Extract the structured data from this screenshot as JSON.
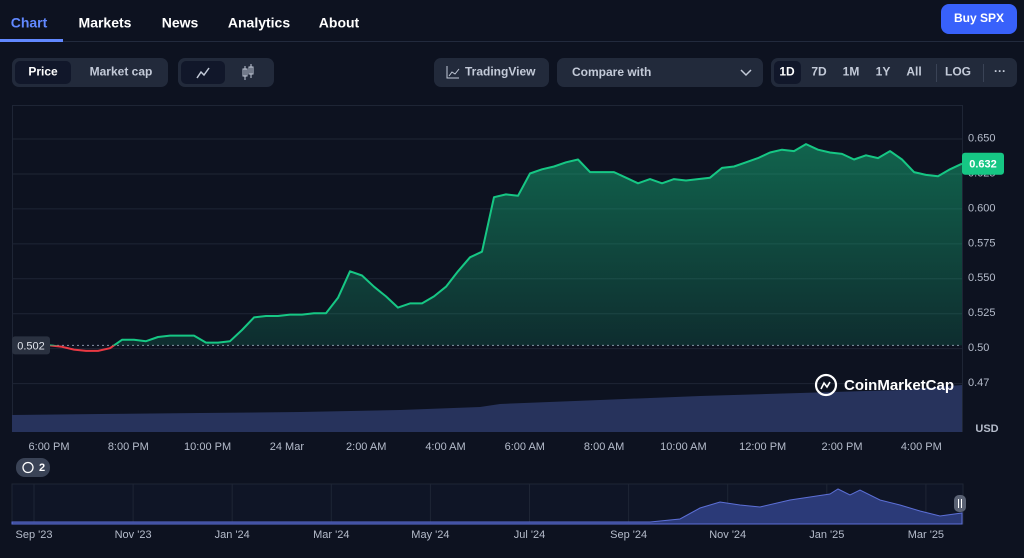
{
  "nav": {
    "tabs": [
      "Chart",
      "Markets",
      "News",
      "Analytics",
      "About"
    ]
  },
  "buy_button": "Buy SPX",
  "toolbar": {
    "toggle": [
      "Price",
      "Market cap"
    ],
    "tradingview": "TradingView",
    "compare": "Compare with",
    "ranges": [
      "1D",
      "7D",
      "1M",
      "1Y",
      "All",
      "LOG"
    ],
    "more": "···"
  },
  "indicator_count": 2,
  "watermark": "CoinMarketCap",
  "chart_data": {
    "type": "line",
    "y_unit": "USD",
    "colors": {
      "up": "#16c784",
      "down": "#ea3943"
    },
    "ylim": [
      0.44,
      0.674
    ],
    "yticks": [
      {
        "value": 0.475,
        "label": "0.47"
      },
      {
        "value": 0.5,
        "label": "0.50"
      },
      0.525,
      {
        "value": 0.55,
        "label": "0.550"
      },
      0.575,
      {
        "value": 0.6,
        "label": "0.600"
      },
      0.625,
      {
        "value": 0.65,
        "label": "0.650"
      }
    ],
    "grid": true,
    "xticks": [
      "6:00 PM",
      "8:00 PM",
      "10:00 PM",
      "24 Mar",
      "2:00 AM",
      "4:00 AM",
      "6:00 AM",
      "8:00 AM",
      "10:00 AM",
      "12:00 PM",
      "2:00 PM",
      "4:00 PM"
    ],
    "values": [
      0.502,
      0.501,
      0.499,
      0.498,
      0.498,
      0.5,
      0.506,
      0.506,
      0.505,
      0.508,
      0.509,
      0.509,
      0.509,
      0.504,
      0.504,
      0.505,
      0.513,
      0.522,
      0.523,
      0.523,
      0.524,
      0.524,
      0.525,
      0.525,
      0.536,
      0.555,
      0.552,
      0.544,
      0.537,
      0.529,
      0.532,
      0.532,
      0.537,
      0.544,
      0.555,
      0.565,
      0.569,
      0.608,
      0.61,
      0.609,
      0.625,
      0.628,
      0.63,
      0.633,
      0.635,
      0.626,
      0.626,
      0.626,
      0.622,
      0.618,
      0.621,
      0.618,
      0.621,
      0.62,
      0.621,
      0.622,
      0.629,
      0.63,
      0.633,
      0.636,
      0.64,
      0.642,
      0.641,
      0.646,
      0.642,
      0.64,
      0.639,
      0.635,
      0.638,
      0.636,
      0.641,
      0.635,
      0.626,
      0.624,
      0.623,
      0.628,
      0.632
    ],
    "overview_xticks": [
      "Sep '23",
      "Nov '23",
      "Jan '24",
      "Mar '24",
      "May '24",
      "Jul '24",
      "Sep '24",
      "Nov '24",
      "Jan '25",
      "Mar '25"
    ]
  }
}
